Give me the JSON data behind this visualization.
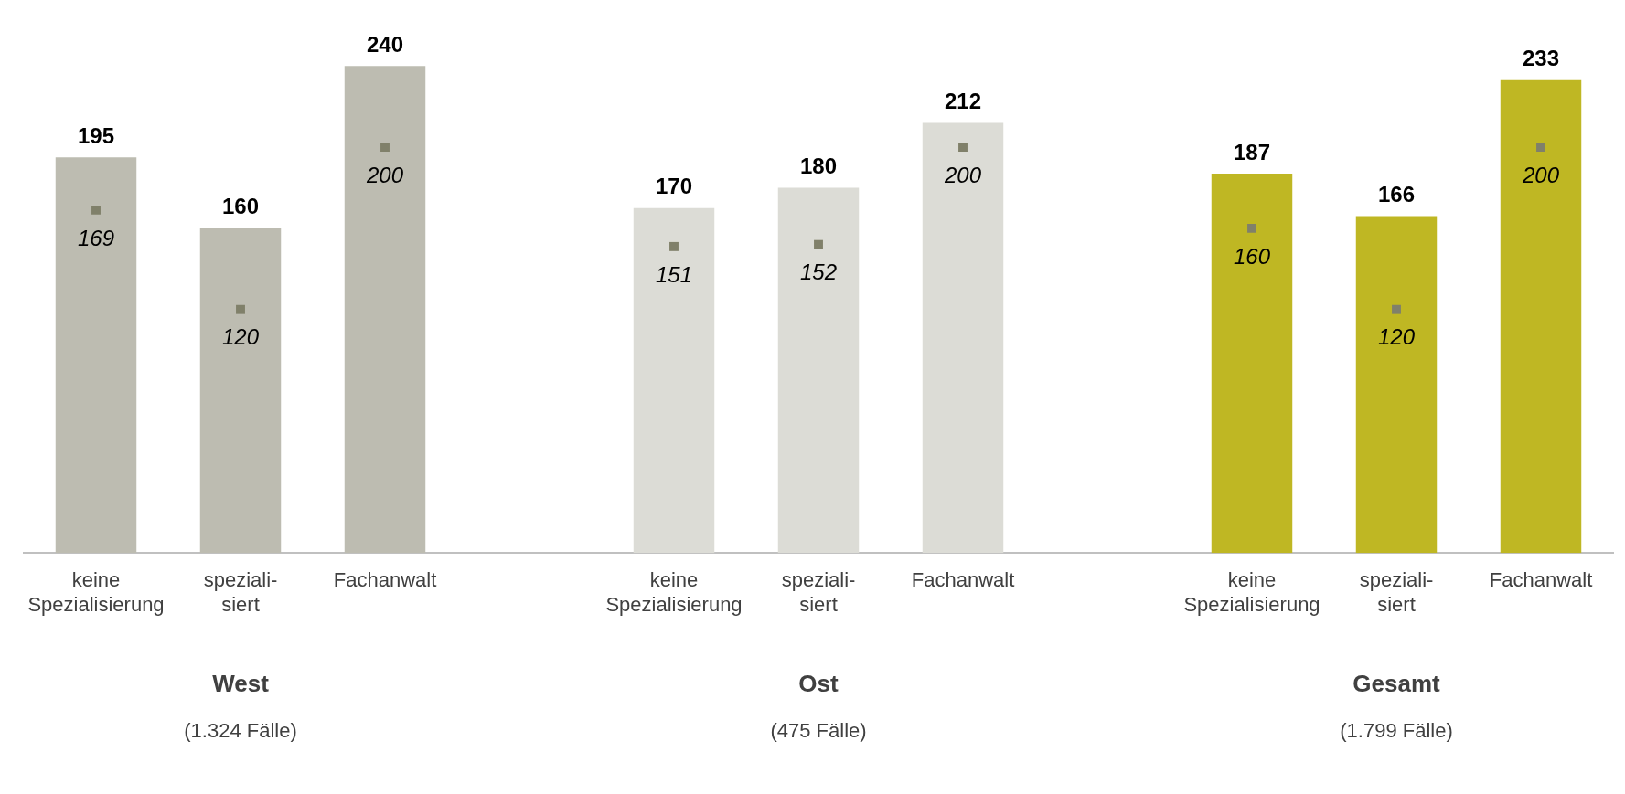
{
  "chart_data": {
    "type": "bar",
    "categories": [
      "keine Spezialisierung",
      "speziali- siert",
      "Fachanwalt",
      null,
      "keine Spezialisierung",
      "speziali- siert",
      "Fachanwalt",
      null,
      "keine Spezialisierung",
      "speziali- siert",
      "Fachanwalt"
    ],
    "series": [
      {
        "type": "bar",
        "colors": [
          "#bdbcb1",
          "#bdbcb1",
          "#bdbcb1",
          null,
          "#dcdcd6",
          "#dcdcd6",
          "#dcdcd6",
          null,
          "#bfb723",
          "#bfb723",
          "#bfb723"
        ],
        "values": [
          195,
          160,
          240,
          null,
          170,
          180,
          212,
          null,
          187,
          166,
          233
        ],
        "value_labels": [
          "195",
          "160",
          "240",
          null,
          "170",
          "180",
          "212",
          null,
          "187",
          "166",
          "233"
        ]
      },
      {
        "type": "scatter",
        "color": "#80806a",
        "values": [
          169,
          120,
          200,
          null,
          151,
          152,
          200,
          null,
          160,
          120,
          200
        ],
        "value_labels": [
          "169",
          "120",
          "200",
          null,
          "151",
          "152",
          "200",
          null,
          "160",
          "120",
          "200"
        ]
      }
    ],
    "annotations": [
      "West",
      "(1.324 Fälle)",
      "Ost",
      "(475 Fälle)",
      "Gesamt",
      "(1.799 Fälle)"
    ],
    "grid": false,
    "legend": false
  }
}
